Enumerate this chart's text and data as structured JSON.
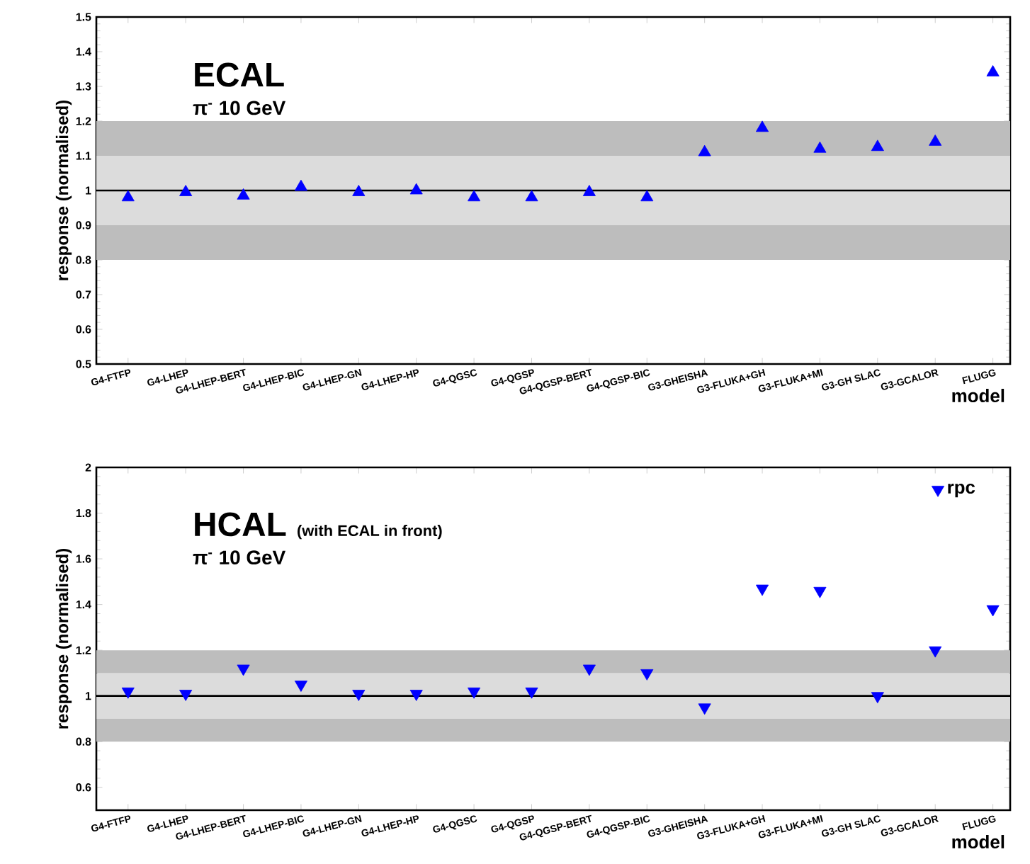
{
  "chart_data": [
    {
      "type": "scatter",
      "title": "ECAL",
      "subtitle": "π$^{-}$ 10 GeV",
      "xlabel": "model",
      "ylabel": "response (normalised)",
      "categories": [
        "G4-FTFP",
        "G4-LHEP",
        "G4-LHEP-BERT",
        "G4-LHEP-BIC",
        "G4-LHEP-GN",
        "G4-LHEP-HP",
        "G4-QGSC",
        "G4-QGSP",
        "G4-QGSP-BERT",
        "G4-QGSP-BIC",
        "G3-GHEISHA",
        "G3-FLUKA+GH",
        "G3-FLUKA+MI",
        "G3-GH SLAC",
        "G3-GCALOR",
        "FLUGG"
      ],
      "series": [
        {
          "color": "#0000ff",
          "values": [
            0.98,
            0.995,
            0.985,
            1.01,
            0.995,
            1.0,
            0.98,
            0.98,
            0.995,
            0.98,
            1.11,
            1.18,
            1.12,
            1.125,
            1.14,
            1.34
          ]
        }
      ],
      "marker": "triangle",
      "ylim": [
        0.5,
        1.5
      ],
      "yticks": [
        0.5,
        0.6,
        0.7,
        0.8,
        0.9,
        1,
        1.1,
        1.2,
        1.3,
        1.4,
        1.5
      ],
      "bands": [
        {
          "axis": "y",
          "from": 0.8,
          "to": 0.9,
          "color": "#bdbdbd"
        },
        {
          "axis": "y",
          "from": 0.9,
          "to": 1.1,
          "color": "#dcdcdc"
        },
        {
          "axis": "y",
          "from": 1.1,
          "to": 1.2,
          "color": "#bdbdbd"
        }
      ],
      "ref_lines": [
        {
          "axis": "y",
          "value": 1,
          "color": "#000000"
        }
      ]
    },
    {
      "type": "scatter",
      "title": "HCAL",
      "subtitle": "π$^{-}$ 10 GeV",
      "annotations": [
        "(with ECAL in front)"
      ],
      "xlabel": "model",
      "ylabel": "response (normalised)",
      "categories": [
        "G4-FTFP",
        "G4-LHEP",
        "G4-LHEP-BERT",
        "G4-LHEP-BIC",
        "G4-LHEP-GN",
        "G4-LHEP-HP",
        "G4-QGSC",
        "G4-QGSP",
        "G4-QGSP-BERT",
        "G4-QGSP-BIC",
        "G3-GHEISHA",
        "G3-FLUKA+GH",
        "G3-FLUKA+MI",
        "G3-GH SLAC",
        "G3-GCALOR",
        "FLUGG"
      ],
      "series": [
        {
          "name": "rpc",
          "color": "#0000ff",
          "values": [
            1.02,
            1.01,
            1.12,
            1.05,
            1.01,
            1.01,
            1.02,
            1.02,
            1.12,
            1.1,
            0.95,
            1.47,
            1.46,
            1.0,
            1.2,
            1.38
          ]
        }
      ],
      "marker": "triangle down",
      "legend": "top right",
      "ylim": [
        0.5,
        2
      ],
      "yticks": [
        0.6,
        0.8,
        1,
        1.2,
        1.4,
        1.6,
        1.8,
        2
      ],
      "bands": [
        {
          "axis": "y",
          "from": 0.8,
          "to": 0.9,
          "color": "#bdbdbd"
        },
        {
          "axis": "y",
          "from": 0.9,
          "to": 1.1,
          "color": "#dcdcdc"
        },
        {
          "axis": "y",
          "from": 1.1,
          "to": 1.2,
          "color": "#bdbdbd"
        }
      ],
      "ref_lines": [
        {
          "axis": "y",
          "value": 1,
          "color": "#000000"
        }
      ]
    }
  ]
}
